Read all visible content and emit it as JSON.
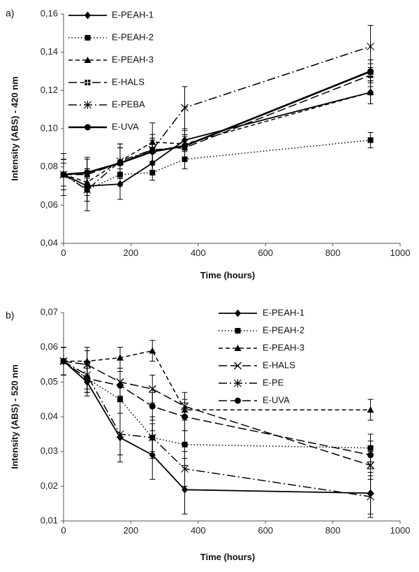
{
  "chart_data": [
    {
      "type": "line",
      "panel_label": "a)",
      "xlabel": "Time (hours)",
      "ylabel": "Intensity (ABS) - 420 nm",
      "xlim": [
        0,
        1000
      ],
      "ylim": [
        0.04,
        0.16
      ],
      "xticks": [
        0,
        200,
        400,
        600,
        800,
        1000
      ],
      "yticks": [
        0.04,
        0.06,
        0.08,
        0.1,
        0.12,
        0.14,
        0.16
      ],
      "xtick_labels": [
        "0",
        "200",
        "400",
        "600",
        "800",
        "1000"
      ],
      "ytick_labels": [
        "0,04",
        "0,06",
        "0,08",
        "0,10",
        "0,12",
        "0,14",
        "0,16"
      ],
      "grid": false,
      "legend_position": "top-left",
      "x": [
        0,
        70,
        168,
        264,
        360,
        912
      ],
      "series": [
        {
          "name": "E-PEAH-1",
          "style": "solid-thin",
          "marker": "diamond",
          "values": [
            0.076,
            0.07,
            0.071,
            0.082,
            0.094,
            0.119
          ],
          "errors": [
            0.008,
            0.008,
            0.008,
            0.006,
            0.006,
            0.006
          ]
        },
        {
          "name": "E-PEAH-2",
          "style": "dotted",
          "marker": "square",
          "values": [
            0.076,
            0.068,
            0.076,
            0.077,
            0.084,
            0.094
          ],
          "errors": [
            0.006,
            0.006,
            0.006,
            0.004,
            0.005,
            0.004
          ]
        },
        {
          "name": "E-PEAH-3",
          "style": "dashed",
          "marker": "triangle",
          "values": [
            0.076,
            0.072,
            0.083,
            0.093,
            0.092,
            0.119
          ],
          "errors": [
            0.008,
            0.007,
            0.009,
            0.01,
            0.007,
            0.006
          ]
        },
        {
          "name": "E-HALS",
          "style": "long-dash",
          "marker": "square-cross",
          "values": [
            0.076,
            0.076,
            0.082,
            0.089,
            0.09,
            0.128
          ],
          "errors": [
            0.008,
            0.008,
            0.008,
            0.006,
            0.006,
            0.006
          ]
        },
        {
          "name": "E-PEBA",
          "style": "dash-dot",
          "marker": "star",
          "values": [
            0.076,
            0.068,
            0.083,
            0.089,
            0.111,
            0.143
          ],
          "errors": [
            0.011,
            0.011,
            0.009,
            0.008,
            0.011,
            0.011
          ]
        },
        {
          "name": "E-UVA",
          "style": "solid-thick",
          "marker": "circle",
          "values": [
            0.076,
            0.077,
            0.082,
            0.088,
            0.091,
            0.13
          ],
          "errors": [
            0.008,
            0.008,
            0.008,
            0.006,
            0.006,
            0.006
          ]
        }
      ]
    },
    {
      "type": "line",
      "panel_label": "b)",
      "xlabel": "Time (hours)",
      "ylabel": "Intensity (ABS) - 520 nm",
      "xlim": [
        0,
        1000
      ],
      "ylim": [
        0.01,
        0.07
      ],
      "xticks": [
        0,
        200,
        400,
        600,
        800,
        1000
      ],
      "yticks": [
        0.01,
        0.02,
        0.03,
        0.04,
        0.05,
        0.06,
        0.07
      ],
      "xtick_labels": [
        "0",
        "200",
        "400",
        "600",
        "800",
        "1000"
      ],
      "ytick_labels": [
        "0,01",
        "0,02",
        "0,03",
        "0,04",
        "0,05",
        "0,06",
        "0,07"
      ],
      "grid": false,
      "legend_position": "top-right",
      "x": [
        0,
        70,
        168,
        264,
        360,
        912
      ],
      "series": [
        {
          "name": "E-PEAH-1",
          "style": "solid-thin",
          "marker": "diamond",
          "values": [
            0.056,
            0.05,
            0.034,
            0.029,
            0.019,
            0.018
          ],
          "errors": [
            0.004,
            0.004,
            0.007,
            0.007,
            0.007,
            0.006
          ]
        },
        {
          "name": "E-PEAH-2",
          "style": "dotted",
          "marker": "square",
          "values": [
            0.056,
            0.051,
            0.045,
            0.034,
            0.032,
            0.031
          ],
          "errors": [
            0.004,
            0.004,
            0.004,
            0.004,
            0.004,
            0.004
          ]
        },
        {
          "name": "E-PEAH-3",
          "style": "dashed",
          "marker": "triangle",
          "values": [
            0.056,
            0.056,
            0.057,
            0.059,
            0.042,
            0.042
          ],
          "errors": [
            0.004,
            0.004,
            0.003,
            0.003,
            0.003,
            0.003
          ]
        },
        {
          "name": "E-HALS",
          "style": "long-dash",
          "marker": "cross",
          "values": [
            0.056,
            0.055,
            0.05,
            0.048,
            0.043,
            0.026
          ],
          "errors": [
            0.004,
            0.004,
            0.004,
            0.004,
            0.004,
            0.004
          ]
        },
        {
          "name": "E-PE",
          "style": "dash-dot",
          "marker": "star",
          "values": [
            0.056,
            0.052,
            0.035,
            0.034,
            0.025,
            0.017
          ],
          "errors": [
            0.004,
            0.004,
            0.006,
            0.006,
            0.005,
            0.006
          ]
        },
        {
          "name": "E-UVA",
          "style": "long-dash",
          "marker": "circle",
          "values": [
            0.056,
            0.051,
            0.049,
            0.043,
            0.04,
            0.029
          ],
          "errors": [
            0.004,
            0.004,
            0.004,
            0.004,
            0.004,
            0.004
          ]
        }
      ]
    }
  ]
}
